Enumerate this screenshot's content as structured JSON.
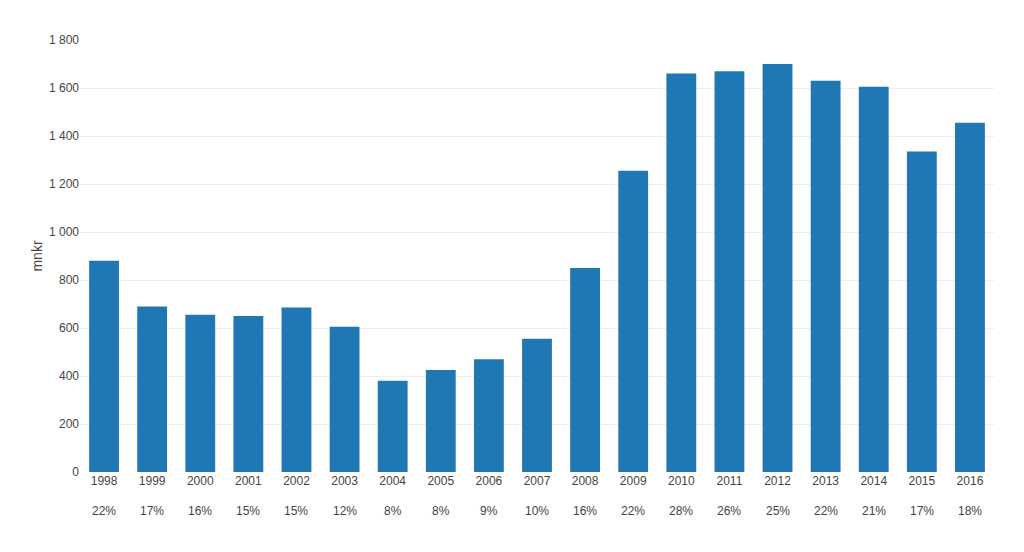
{
  "chart_data": {
    "type": "bar",
    "ylabel": "mnkr",
    "categories": [
      "1998",
      "1999",
      "2000",
      "2001",
      "2002",
      "2003",
      "2004",
      "2005",
      "2006",
      "2007",
      "2008",
      "2009",
      "2010",
      "2011",
      "2012",
      "2013",
      "2014",
      "2015",
      "2016"
    ],
    "values": [
      880,
      690,
      655,
      650,
      685,
      605,
      380,
      425,
      470,
      555,
      850,
      1255,
      1660,
      1670,
      1700,
      1630,
      1605,
      1335,
      1455
    ],
    "annotations": [
      {
        "category": "1998",
        "text": "22%"
      },
      {
        "category": "1999",
        "text": "17%"
      },
      {
        "category": "2000",
        "text": "16%"
      },
      {
        "category": "2001",
        "text": "15%"
      },
      {
        "category": "2002",
        "text": "15%"
      },
      {
        "category": "2003",
        "text": "12%"
      },
      {
        "category": "2004",
        "text": "8%"
      },
      {
        "category": "2005",
        "text": "8%"
      },
      {
        "category": "2006",
        "text": "9%"
      },
      {
        "category": "2007",
        "text": "10%"
      },
      {
        "category": "2008",
        "text": "16%"
      },
      {
        "category": "2009",
        "text": "22%"
      },
      {
        "category": "2010",
        "text": "28%"
      },
      {
        "category": "2011",
        "text": "26%"
      },
      {
        "category": "2012",
        "text": "25%"
      },
      {
        "category": "2013",
        "text": "22%"
      },
      {
        "category": "2014",
        "text": "21%"
      },
      {
        "category": "2015",
        "text": "17%"
      },
      {
        "category": "2016",
        "text": "18%"
      }
    ],
    "ylim": [
      0,
      1800
    ],
    "yticks": [
      0,
      200,
      400,
      600,
      800,
      {
        "value": 1000,
        "label": "1 000"
      },
      {
        "value": 1200,
        "label": "1 200"
      },
      {
        "value": 1400,
        "label": "1 400"
      },
      {
        "value": 1600,
        "label": "1 600"
      },
      {
        "value": 1800,
        "label": "1 800"
      }
    ],
    "grid": true
  }
}
